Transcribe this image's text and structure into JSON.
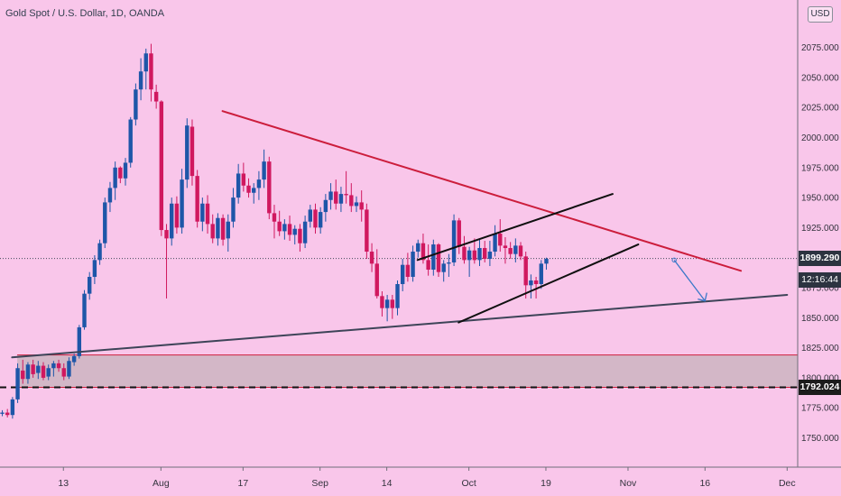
{
  "header": {
    "title": "Gold Spot / U.S. Dollar, 1D, OANDA",
    "currency_button": "USD"
  },
  "price_axis": {
    "current_price": "1899.290",
    "countdown": "12:16:44",
    "support_level": "1792.024"
  },
  "chart_data": {
    "type": "candlestick",
    "y_axis_labels": [
      "2075.000",
      "2050.000",
      "2025.000",
      "2000.000",
      "1975.000",
      "1950.000",
      "1925.000",
      "1900.000",
      "1875.000",
      "1850.000",
      "1825.000",
      "1800.000",
      "1775.000",
      "1750.000"
    ],
    "ylim": [
      1720,
      2105
    ],
    "x_axis_labels": [
      "13",
      "Aug",
      "17",
      "Sep",
      "14",
      "Oct",
      "19",
      "Nov",
      "16",
      "Dec"
    ],
    "x_label_days": [
      12,
      31,
      47,
      62,
      75,
      91,
      106,
      122,
      137,
      153
    ],
    "xlim": [
      0,
      154
    ],
    "candles_ohlc": [
      [
        1770,
        1773,
        1768,
        1771
      ],
      [
        1771,
        1774,
        1767,
        1769
      ],
      [
        1769,
        1784,
        1766,
        1782
      ],
      [
        1782,
        1812,
        1779,
        1808
      ],
      [
        1806,
        1815,
        1795,
        1799
      ],
      [
        1799,
        1813,
        1795,
        1811
      ],
      [
        1811,
        1815,
        1800,
        1803
      ],
      [
        1804,
        1814,
        1799,
        1810
      ],
      [
        1810,
        1813,
        1798,
        1800
      ],
      [
        1801,
        1811,
        1798,
        1808
      ],
      [
        1808,
        1814,
        1801,
        1812
      ],
      [
        1812,
        1815,
        1805,
        1808
      ],
      [
        1808,
        1812,
        1798,
        1801
      ],
      [
        1801,
        1817,
        1799,
        1814
      ],
      [
        1813,
        1820,
        1810,
        1818
      ],
      [
        1818,
        1844,
        1816,
        1842
      ],
      [
        1842,
        1873,
        1840,
        1870
      ],
      [
        1870,
        1888,
        1865,
        1884
      ],
      [
        1884,
        1902,
        1878,
        1898
      ],
      [
        1898,
        1915,
        1894,
        1912
      ],
      [
        1912,
        1950,
        1908,
        1946
      ],
      [
        1946,
        1963,
        1938,
        1958
      ],
      [
        1958,
        1980,
        1948,
        1975
      ],
      [
        1975,
        1976,
        1962,
        1966
      ],
      [
        1966,
        1983,
        1960,
        1979
      ],
      [
        1979,
        2017,
        1975,
        2015
      ],
      [
        2015,
        2045,
        2010,
        2040
      ],
      [
        2040,
        2066,
        2031,
        2055
      ],
      [
        2055,
        2074,
        2040,
        2070
      ],
      [
        2070,
        2078,
        2030,
        2040
      ],
      [
        2038,
        2044,
        2024,
        2030
      ],
      [
        2030,
        2031,
        1918,
        1923
      ],
      [
        1923,
        1928,
        1866,
        1916
      ],
      [
        1916,
        1950,
        1910,
        1945
      ],
      [
        1945,
        1951,
        1920,
        1925
      ],
      [
        1925,
        1974,
        1920,
        1965
      ],
      [
        1965,
        2016,
        1958,
        2010
      ],
      [
        2009,
        2015,
        1960,
        1968
      ],
      [
        1968,
        1973,
        1925,
        1930
      ],
      [
        1930,
        1950,
        1922,
        1945
      ],
      [
        1945,
        1952,
        1920,
        1928
      ],
      [
        1928,
        1936,
        1912,
        1916
      ],
      [
        1916,
        1937,
        1910,
        1933
      ],
      [
        1933,
        1936,
        1910,
        1915
      ],
      [
        1916,
        1936,
        1905,
        1930
      ],
      [
        1930,
        1958,
        1925,
        1950
      ],
      [
        1950,
        1978,
        1945,
        1970
      ],
      [
        1970,
        1979,
        1955,
        1960
      ],
      [
        1960,
        1966,
        1950,
        1954
      ],
      [
        1954,
        1962,
        1945,
        1958
      ],
      [
        1958,
        1972,
        1948,
        1965
      ],
      [
        1965,
        1990,
        1958,
        1980
      ],
      [
        1980,
        1984,
        1932,
        1937
      ],
      [
        1937,
        1944,
        1916,
        1930
      ],
      [
        1930,
        1939,
        1918,
        1922
      ],
      [
        1922,
        1932,
        1915,
        1928
      ],
      [
        1928,
        1935,
        1914,
        1919
      ],
      [
        1919,
        1927,
        1911,
        1924
      ],
      [
        1924,
        1928,
        1905,
        1912
      ],
      [
        1912,
        1935,
        1908,
        1930
      ],
      [
        1930,
        1944,
        1925,
        1940
      ],
      [
        1940,
        1945,
        1920,
        1925
      ],
      [
        1925,
        1942,
        1920,
        1938
      ],
      [
        1938,
        1953,
        1930,
        1948
      ],
      [
        1948,
        1962,
        1940,
        1955
      ],
      [
        1955,
        1965,
        1940,
        1945
      ],
      [
        1945,
        1959,
        1938,
        1953
      ],
      [
        1953,
        1972,
        1945,
        1952
      ],
      [
        1952,
        1962,
        1938,
        1943
      ],
      [
        1943,
        1951,
        1938,
        1946
      ],
      [
        1946,
        1956,
        1930,
        1940
      ],
      [
        1940,
        1945,
        1899,
        1905
      ],
      [
        1905,
        1912,
        1888,
        1895
      ],
      [
        1895,
        1907,
        1866,
        1868
      ],
      [
        1868,
        1872,
        1851,
        1858
      ],
      [
        1858,
        1869,
        1847,
        1865
      ],
      [
        1865,
        1869,
        1849,
        1858
      ],
      [
        1858,
        1881,
        1852,
        1878
      ],
      [
        1878,
        1899,
        1872,
        1894
      ],
      [
        1894,
        1904,
        1880,
        1884
      ],
      [
        1884,
        1910,
        1880,
        1905
      ],
      [
        1905,
        1915,
        1900,
        1912
      ],
      [
        1912,
        1920,
        1895,
        1898
      ],
      [
        1898,
        1911,
        1885,
        1890
      ],
      [
        1890,
        1915,
        1885,
        1911
      ],
      [
        1911,
        1912,
        1884,
        1888
      ],
      [
        1888,
        1898,
        1880,
        1895
      ],
      [
        1895,
        1903,
        1884,
        1896
      ],
      [
        1896,
        1936,
        1893,
        1931
      ],
      [
        1931,
        1933,
        1903,
        1909
      ],
      [
        1909,
        1918,
        1895,
        1898
      ],
      [
        1898,
        1909,
        1884,
        1906
      ],
      [
        1906,
        1916,
        1895,
        1898
      ],
      [
        1898,
        1916,
        1893,
        1908
      ],
      [
        1908,
        1914,
        1896,
        1899
      ],
      [
        1899,
        1914,
        1893,
        1905
      ],
      [
        1905,
        1927,
        1901,
        1920
      ],
      [
        1920,
        1932,
        1905,
        1910
      ],
      [
        1910,
        1917,
        1895,
        1908
      ],
      [
        1908,
        1913,
        1899,
        1903
      ],
      [
        1903,
        1916,
        1896,
        1910
      ],
      [
        1910,
        1913,
        1898,
        1901
      ],
      [
        1901,
        1905,
        1866,
        1877
      ],
      [
        1877,
        1886,
        1866,
        1881
      ],
      [
        1881,
        1884,
        1866,
        1878
      ],
      [
        1878,
        1898,
        1874,
        1895
      ],
      [
        1895,
        1900,
        1890,
        1899
      ]
    ],
    "bullish_color": "#1e56a8",
    "bearish_color": "#d0185f",
    "trendlines": [
      {
        "name": "descending-resistance",
        "color": "#cc1d3c",
        "points": [
          [
            43,
            2022
          ],
          [
            144,
            1889
          ]
        ]
      },
      {
        "name": "ascending-support",
        "color": "#3d4458",
        "points": [
          [
            2,
            1817
          ],
          [
            153,
            1869
          ]
        ]
      },
      {
        "name": "channel-upper",
        "color": "#101010",
        "points": [
          [
            81,
            1898
          ],
          [
            119,
            1953
          ]
        ]
      },
      {
        "name": "channel-lower",
        "color": "#101010",
        "points": [
          [
            89,
            1846
          ],
          [
            124,
            1911
          ]
        ]
      }
    ],
    "projection_arrow": {
      "color": "#3a78c8",
      "points": [
        [
          131,
          1898
        ],
        [
          137,
          1864
        ]
      ]
    },
    "support_zone": {
      "from": 1792,
      "to": 1819,
      "border_color": "#cc1d3c",
      "fill": "#d3b7c7"
    },
    "horizontal_levels": [
      {
        "name": "current-price-line",
        "value": 1899.29,
        "style": "dotted",
        "color": "#444a58"
      },
      {
        "name": "support-level-line",
        "value": 1792.024,
        "style": "dashed",
        "color": "#111111"
      }
    ]
  }
}
